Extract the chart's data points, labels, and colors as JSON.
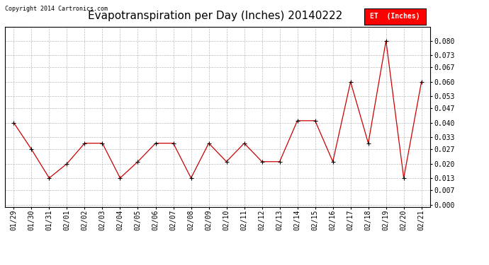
{
  "title": "Evapotranspiration per Day (Inches) 20140222",
  "copyright_text": "Copyright 2014 Cartronics.com",
  "legend_label": "ET  (Inches)",
  "line_color": "#cc0000",
  "marker": "+",
  "marker_color": "#000000",
  "background_color": "#ffffff",
  "grid_color": "#bbbbbb",
  "grid_linestyle": "--",
  "dates": [
    "01/29",
    "01/30",
    "01/31",
    "02/01",
    "02/02",
    "02/03",
    "02/04",
    "02/05",
    "02/06",
    "02/07",
    "02/08",
    "02/09",
    "02/10",
    "02/11",
    "02/12",
    "02/13",
    "02/14",
    "02/15",
    "02/16",
    "02/17",
    "02/18",
    "02/19",
    "02/20",
    "02/21"
  ],
  "values": [
    0.04,
    0.027,
    0.013,
    0.02,
    0.03,
    0.03,
    0.013,
    0.021,
    0.03,
    0.03,
    0.013,
    0.03,
    0.021,
    0.03,
    0.021,
    0.021,
    0.041,
    0.041,
    0.021,
    0.06,
    0.03,
    0.08,
    0.013,
    0.06
  ],
  "ylim": [
    -0.001,
    0.087
  ],
  "yticks": [
    0.0,
    0.007,
    0.013,
    0.02,
    0.027,
    0.033,
    0.04,
    0.047,
    0.053,
    0.06,
    0.067,
    0.073,
    0.08
  ],
  "title_fontsize": 11,
  "copyright_fontsize": 6,
  "tick_fontsize": 7,
  "legend_fontsize": 7
}
